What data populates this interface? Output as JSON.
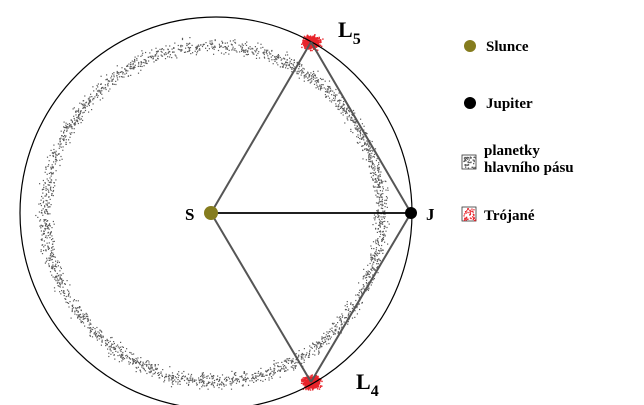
{
  "bodies": {
    "sun": {
      "label": "S",
      "color": "#857c1e"
    },
    "jupiter": {
      "label": "J",
      "color": "#000000"
    },
    "l5": {
      "label": "L",
      "subscript": "5"
    },
    "l4": {
      "label": "L",
      "subscript": "4"
    }
  },
  "legend": {
    "items": [
      {
        "key": "slunce",
        "lines": [
          "Slunce"
        ],
        "marker": "olive-dot",
        "color": "#857c1e"
      },
      {
        "key": "jupiter",
        "lines": [
          "Jupiter"
        ],
        "marker": "black-dot",
        "color": "#000000"
      },
      {
        "key": "belt",
        "lines": [
          "planetky",
          "hlavního pásu"
        ],
        "marker": "gray-speckle-square",
        "color": "#555555"
      },
      {
        "key": "trojans",
        "lines": [
          "Trójané"
        ],
        "marker": "red-speckle-square",
        "color": "#e8242b"
      }
    ]
  },
  "colors": {
    "orbit": "#000000",
    "belt_dots": "#5a5a5a",
    "trojan_dots": "#e8242b",
    "triangle_lines": "#666666"
  }
}
